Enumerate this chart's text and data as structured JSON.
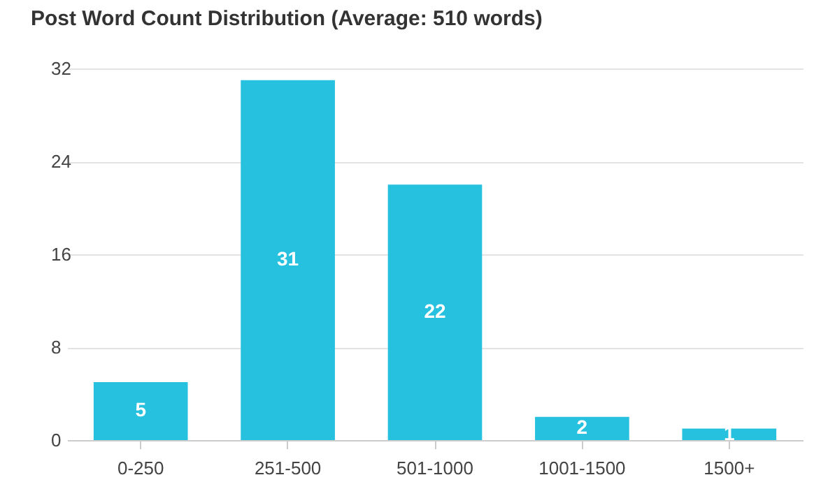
{
  "chart_data": {
    "type": "bar",
    "title": "Post Word Count Distribution (Average: 510 words)",
    "categories": [
      "0-250",
      "251-500",
      "501-1000",
      "1001-1500",
      "1500+"
    ],
    "values": [
      5,
      31,
      22,
      2,
      1
    ],
    "color": "#26c1de",
    "ylim": [
      0,
      32
    ],
    "yticks": [
      0,
      8,
      16,
      24,
      32
    ],
    "grid": "y",
    "data_labels": true
  }
}
